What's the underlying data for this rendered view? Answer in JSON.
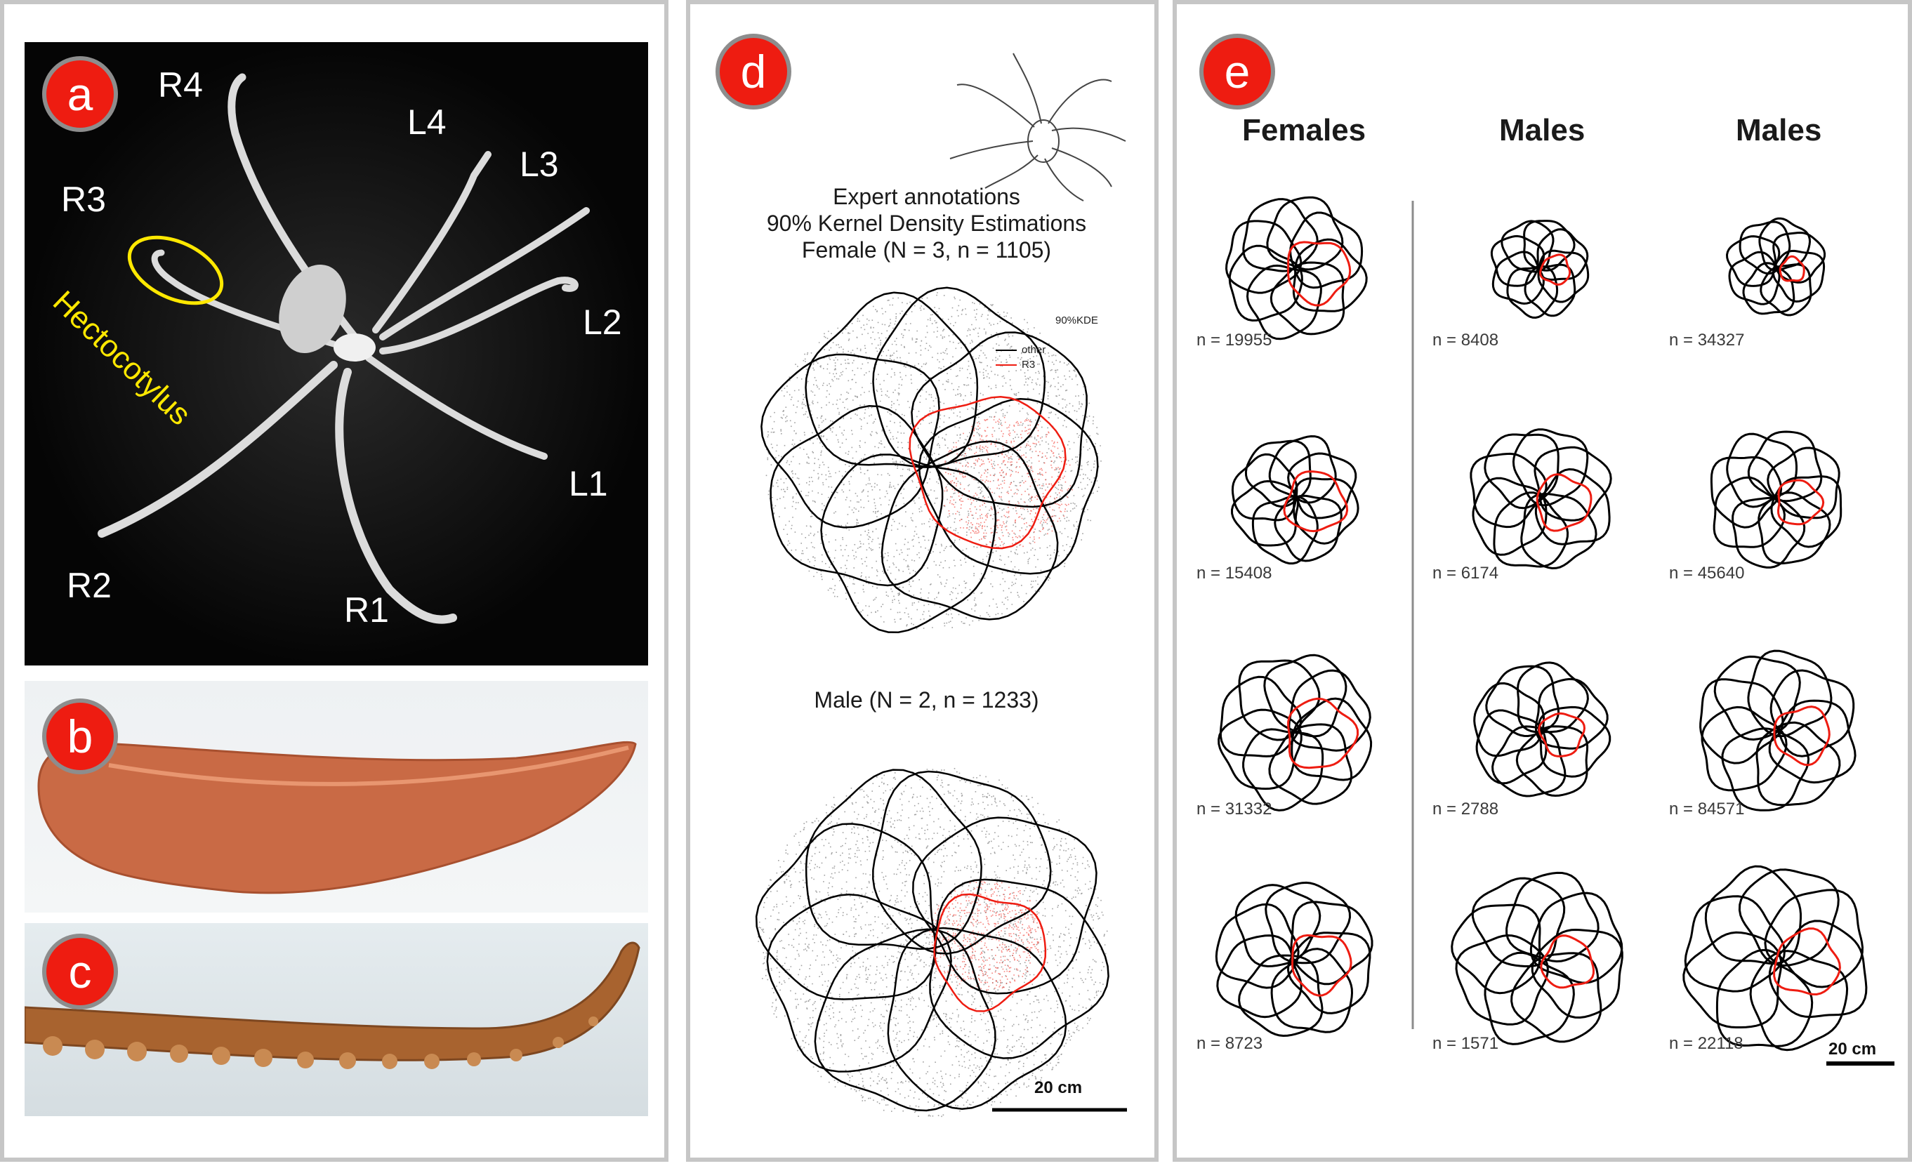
{
  "panel_a": {
    "badge": "a",
    "arm_labels": [
      "R4",
      "L4",
      "L3",
      "R3",
      "L2",
      "L1",
      "R2",
      "R1"
    ],
    "hectocotylus_label": "Hectocotylus",
    "label_color": "#ffffff",
    "hecto_color": "#ffe800"
  },
  "panel_b": {
    "badge": "b"
  },
  "panel_c": {
    "badge": "c"
  },
  "panel_d": {
    "badge": "d",
    "title_lines": [
      "Expert annotations",
      "90% Kernel Density Estimations",
      "Female (N = 3, n = 1105)"
    ],
    "male_title": "Male (N = 2, n = 1233)",
    "legend": {
      "title": "90%KDE",
      "items": [
        {
          "label": "other",
          "color": "#000000"
        },
        {
          "label": "R3",
          "color": "#ee1c11"
        }
      ]
    },
    "scale_label": "20 cm"
  },
  "panel_e": {
    "badge": "e",
    "columns": [
      "Females",
      "Males",
      "Males"
    ],
    "counts": [
      [
        "n = 19955",
        "n = 8408",
        "n = 34327"
      ],
      [
        "n = 15408",
        "n = 6174",
        "n = 45640"
      ],
      [
        "n = 31332",
        "n = 2788",
        "n = 84571"
      ],
      [
        "n = 8723",
        "n = 1571",
        "n = 22118"
      ]
    ],
    "scale_label": "20 cm"
  },
  "colors": {
    "badge": "#ee1c11",
    "badge_border": "#8d8d8d",
    "panel_border": "#c6c6c6",
    "highlight": "#ee1c11"
  }
}
